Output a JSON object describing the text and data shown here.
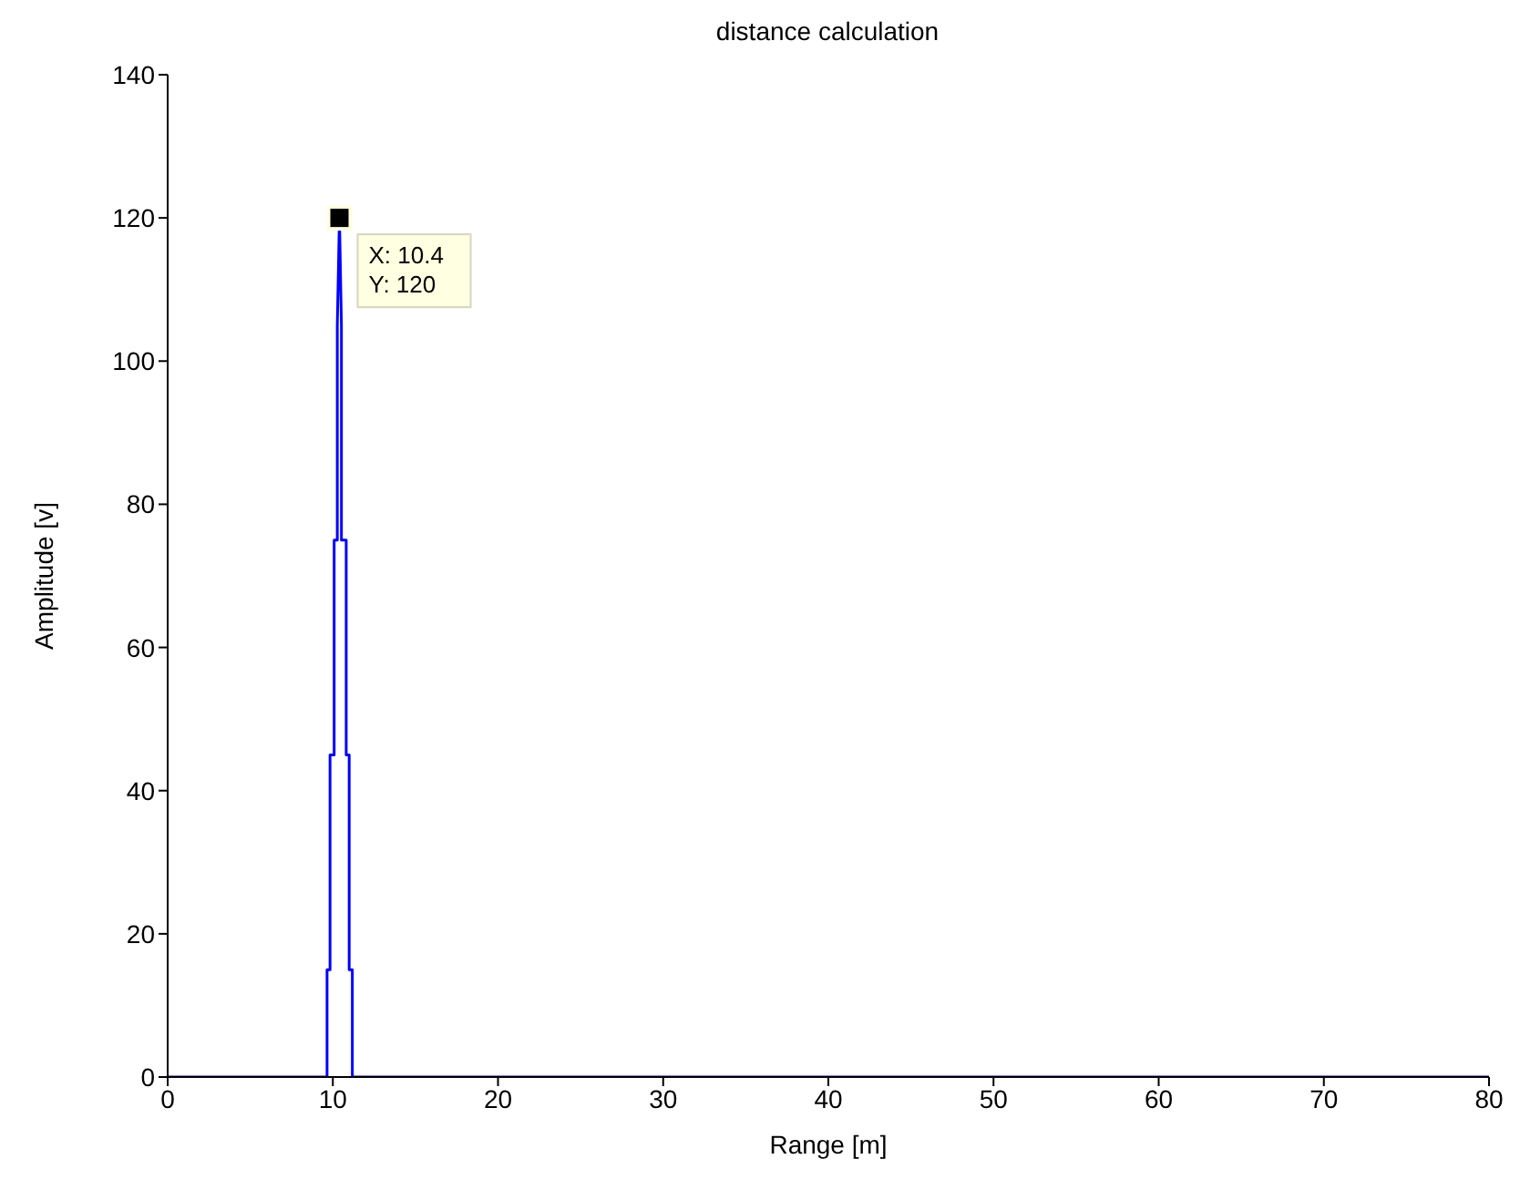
{
  "chart_data": {
    "type": "line",
    "title": "distance  calculation",
    "xlabel": "Range [m]",
    "ylabel": "Amplitude  [v]",
    "series": [
      {
        "color": "#0000ff",
        "x": [
          0,
          9.65,
          9.65,
          9.83,
          9.83,
          10.08,
          10.08,
          10.27,
          10.27,
          10.4,
          10.52,
          10.52,
          10.81,
          10.81,
          10.99,
          10.99,
          11.18,
          11.18,
          80
        ],
        "values": [
          0,
          0,
          15,
          15,
          45,
          45,
          75,
          75,
          105,
          120,
          105,
          75,
          75,
          45,
          45,
          15,
          15,
          0,
          0
        ]
      }
    ],
    "xlim": [
      0,
      80
    ],
    "xticks": [
      0,
      10,
      20,
      30,
      40,
      50,
      60,
      70,
      80
    ],
    "ylim": [
      0,
      140
    ],
    "yticks": [
      0,
      20,
      40,
      60,
      80,
      100,
      120,
      140
    ],
    "marker": "none",
    "line_style": "solid",
    "annotations": [
      {
        "text": "X: 10.4\nY: 120",
        "x": 10.4,
        "y": 120
      }
    ]
  }
}
